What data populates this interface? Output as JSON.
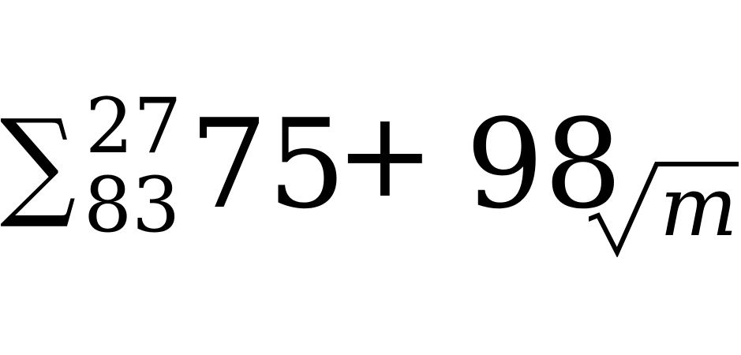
{
  "expression": {
    "sum_symbol": "∑",
    "upper_limit": "27",
    "lower_limit": "83",
    "term1": "75",
    "operator": "+",
    "term2": "98",
    "radicand": "m"
  }
}
